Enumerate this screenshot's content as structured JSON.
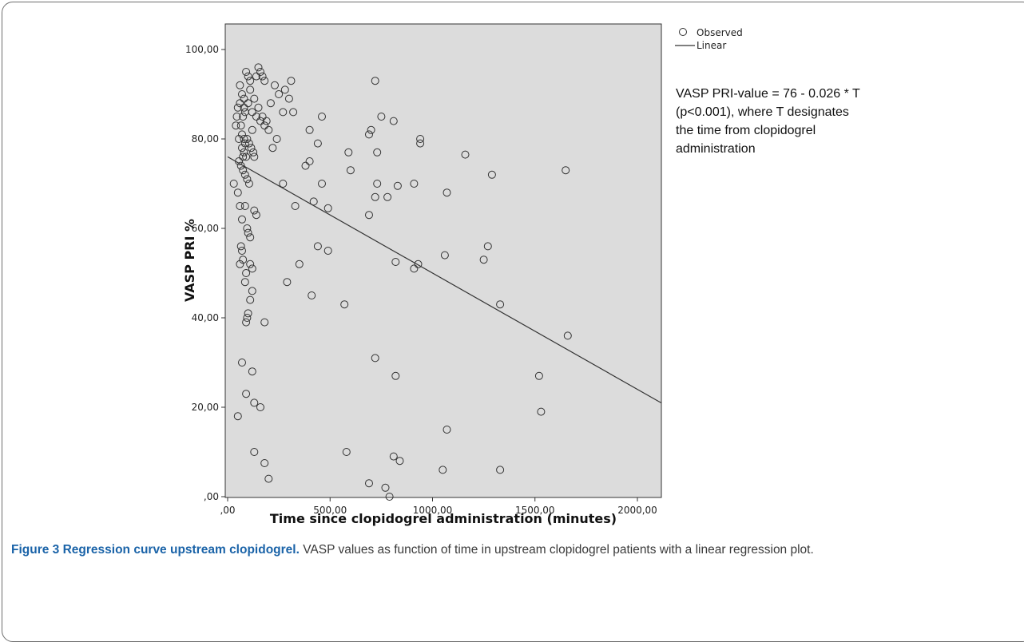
{
  "chart_data": {
    "type": "scatter",
    "xlabel": "Time since clopidogrel administration (minutes)",
    "ylabel": "VASP PRI %",
    "xlim": [
      0,
      2100
    ],
    "ylim": [
      0,
      105
    ],
    "x_ticks": [
      ",00",
      "500,00",
      "1000,00",
      "1500,00",
      "2000,00"
    ],
    "x_tick_values": [
      0,
      500,
      1000,
      1500,
      2000
    ],
    "y_ticks": [
      ",00",
      "20,00",
      "40,00",
      "60,00",
      "80,00",
      "100,00"
    ],
    "y_tick_values": [
      0,
      20,
      40,
      60,
      80,
      100
    ],
    "legend": [
      {
        "label": "Observed",
        "marker": "circle"
      },
      {
        "label": "Linear",
        "marker": "line"
      }
    ],
    "legend_position": "top-right outside",
    "grid": false,
    "colors": {
      "plot_background": "#dcdcdc",
      "points": "#333333",
      "line": "#333333"
    },
    "series": [
      {
        "name": "Observed",
        "type": "scatter",
        "points": [
          [
            60,
            92
          ],
          [
            70,
            90
          ],
          [
            80,
            89
          ],
          [
            75,
            85
          ],
          [
            85,
            86
          ],
          [
            65,
            83
          ],
          [
            55,
            80
          ],
          [
            70,
            78
          ],
          [
            80,
            77
          ],
          [
            90,
            76
          ],
          [
            100,
            88
          ],
          [
            110,
            91
          ],
          [
            120,
            82
          ],
          [
            95,
            80
          ],
          [
            105,
            79
          ],
          [
            115,
            78
          ],
          [
            125,
            77
          ],
          [
            130,
            76
          ],
          [
            60,
            88
          ],
          [
            50,
            87
          ],
          [
            45,
            85
          ],
          [
            40,
            83
          ],
          [
            70,
            81
          ],
          [
            80,
            80
          ],
          [
            85,
            79
          ],
          [
            90,
            95
          ],
          [
            100,
            94
          ],
          [
            110,
            93
          ],
          [
            140,
            94
          ],
          [
            150,
            96
          ],
          [
            160,
            95
          ],
          [
            170,
            94
          ],
          [
            180,
            93
          ],
          [
            75,
            73
          ],
          [
            85,
            72
          ],
          [
            95,
            71
          ],
          [
            105,
            70
          ],
          [
            55,
            75
          ],
          [
            65,
            74
          ],
          [
            75,
            76
          ],
          [
            80,
            87
          ],
          [
            120,
            86
          ],
          [
            140,
            85
          ],
          [
            160,
            84
          ],
          [
            180,
            83
          ],
          [
            200,
            82
          ],
          [
            210,
            88
          ],
          [
            230,
            92
          ],
          [
            250,
            90
          ],
          [
            270,
            86
          ],
          [
            300,
            89
          ],
          [
            310,
            93
          ],
          [
            130,
            89
          ],
          [
            150,
            87
          ],
          [
            170,
            85
          ],
          [
            190,
            84
          ],
          [
            320,
            86
          ],
          [
            280,
            91
          ],
          [
            220,
            78
          ],
          [
            240,
            80
          ],
          [
            30,
            70
          ],
          [
            50,
            68
          ],
          [
            60,
            65
          ],
          [
            70,
            62
          ],
          [
            85,
            65
          ],
          [
            95,
            60
          ],
          [
            100,
            59
          ],
          [
            110,
            58
          ],
          [
            130,
            64
          ],
          [
            140,
            63
          ],
          [
            65,
            56
          ],
          [
            70,
            55
          ],
          [
            75,
            53
          ],
          [
            60,
            52
          ],
          [
            110,
            52
          ],
          [
            120,
            51
          ],
          [
            90,
            50
          ],
          [
            85,
            48
          ],
          [
            120,
            46
          ],
          [
            110,
            44
          ],
          [
            100,
            41
          ],
          [
            95,
            40
          ],
          [
            90,
            39
          ],
          [
            180,
            39
          ],
          [
            70,
            30
          ],
          [
            120,
            28
          ],
          [
            90,
            23
          ],
          [
            130,
            21
          ],
          [
            160,
            20
          ],
          [
            50,
            18
          ],
          [
            130,
            10
          ],
          [
            180,
            7.5
          ],
          [
            200,
            4
          ],
          [
            270,
            70
          ],
          [
            330,
            65
          ],
          [
            350,
            52
          ],
          [
            290,
            48
          ],
          [
            380,
            74
          ],
          [
            400,
            82
          ],
          [
            400,
            75
          ],
          [
            420,
            66
          ],
          [
            440,
            79
          ],
          [
            460,
            85
          ],
          [
            460,
            70
          ],
          [
            440,
            56
          ],
          [
            410,
            45
          ],
          [
            490,
            64.5
          ],
          [
            490,
            55
          ],
          [
            570,
            43
          ],
          [
            580,
            10
          ],
          [
            590,
            77
          ],
          [
            600,
            73
          ],
          [
            690,
            81
          ],
          [
            700,
            82
          ],
          [
            690,
            63
          ],
          [
            720,
            67
          ],
          [
            720,
            93
          ],
          [
            730,
            77
          ],
          [
            730,
            70
          ],
          [
            750,
            85
          ],
          [
            780,
            67
          ],
          [
            810,
            84
          ],
          [
            820,
            52.5
          ],
          [
            830,
            69.5
          ],
          [
            720,
            31
          ],
          [
            820,
            27
          ],
          [
            840,
            8
          ],
          [
            810,
            9
          ],
          [
            690,
            3
          ],
          [
            770,
            2
          ],
          [
            790,
            0
          ],
          [
            910,
            70
          ],
          [
            910,
            51
          ],
          [
            930,
            52
          ],
          [
            940,
            80
          ],
          [
            940,
            79
          ],
          [
            1060,
            54
          ],
          [
            1070,
            68
          ],
          [
            1070,
            15
          ],
          [
            1050,
            6
          ],
          [
            1160,
            76.5
          ],
          [
            1250,
            53
          ],
          [
            1270,
            56
          ],
          [
            1290,
            72
          ],
          [
            1330,
            43
          ],
          [
            1330,
            6
          ],
          [
            1520,
            27
          ],
          [
            1530,
            19
          ],
          [
            1650,
            73
          ],
          [
            1660,
            36
          ]
        ]
      },
      {
        "name": "Linear",
        "type": "line",
        "intercept": 76,
        "slope": -0.026
      }
    ]
  },
  "annotation": {
    "lines": [
      "VASP PRI-value = 76 - 0.026 * T",
      "(p<0.001), where T designates",
      "the time from clopidogrel",
      "administration"
    ]
  },
  "caption": {
    "label": "Figure 3 Regression curve upstream clopidogrel.",
    "text": " VASP values as function of time in upstream clopidogrel patients with a linear regression plot."
  }
}
